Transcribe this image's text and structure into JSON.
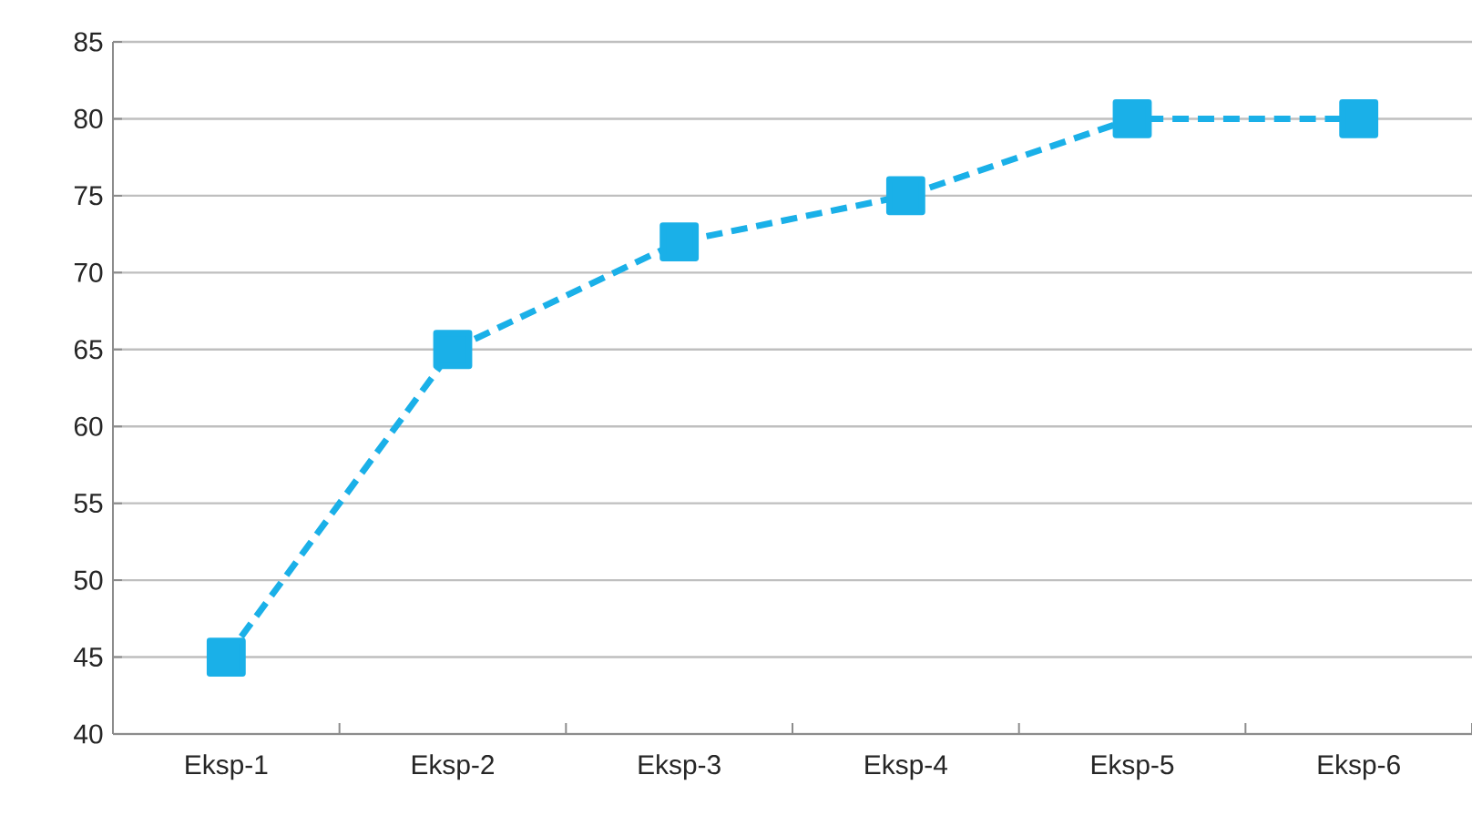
{
  "chart_data": {
    "type": "line",
    "categories": [
      "Eksp-1",
      "Eksp-2",
      "Eksp-3",
      "Eksp-4",
      "Eksp-5",
      "Eksp-6"
    ],
    "series": [
      {
        "color": "#1ab0e8",
        "values": [
          45,
          65,
          72,
          75,
          80,
          80
        ]
      }
    ],
    "ylim": [
      40,
      85
    ],
    "yticks": [
      40,
      45,
      50,
      55,
      60,
      65,
      70,
      75,
      80,
      85
    ],
    "grid": "y",
    "marker": "square",
    "line_style": "dashed"
  }
}
